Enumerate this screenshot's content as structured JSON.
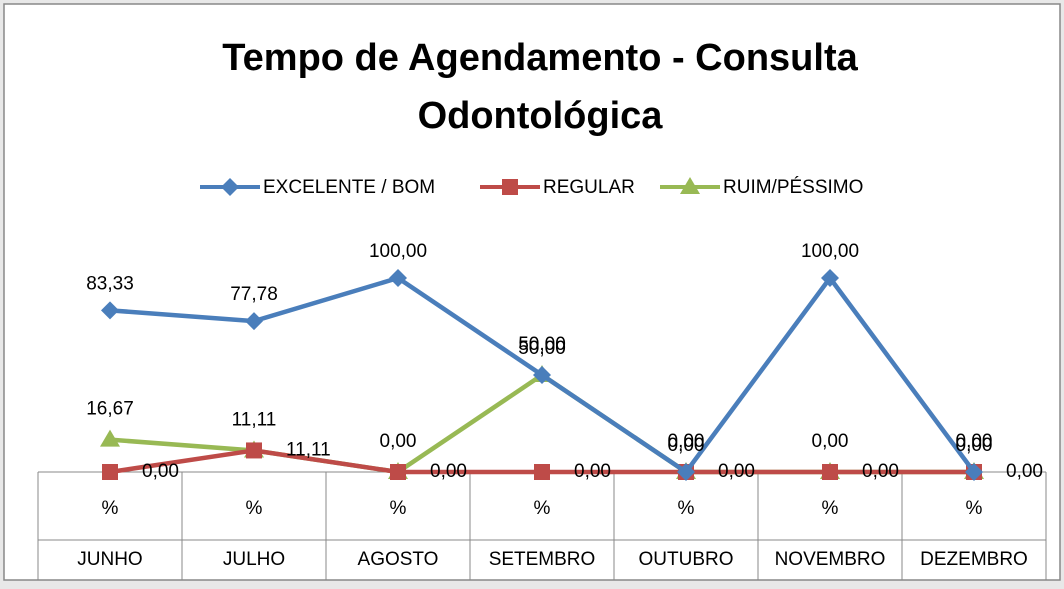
{
  "chart_data": {
    "type": "line",
    "title": [
      "Tempo de Agendamento - Consulta",
      "Odontológica"
    ],
    "categories": [
      "JUNHO",
      "JULHO",
      "AGOSTO",
      "SETEMBRO",
      "OUTUBRO",
      "NOVEMBRO",
      "DEZEMBRO"
    ],
    "unit": "%",
    "legend": "top",
    "series": [
      {
        "name": "EXCELENTE / BOM",
        "color": "#4a7ebb",
        "marker": "diamond",
        "values": [
          83.33,
          77.78,
          100,
          50,
          0,
          100,
          0
        ],
        "value_labels": [
          "83,33",
          "77,78",
          "100,00",
          "50,00",
          "0,00",
          "100,00",
          "0,00"
        ]
      },
      {
        "name": "REGULAR",
        "color": "#be4b48",
        "marker": "square",
        "values": [
          0,
          11.11,
          0,
          0,
          0,
          0,
          0
        ],
        "value_labels": [
          "0,00",
          "11,11",
          "0,00",
          "0,00",
          "0,00",
          "0,00",
          "0,00"
        ]
      },
      {
        "name": "RUIM/PÉSSIMO",
        "color": "#98b954",
        "marker": "triangle",
        "values": [
          16.67,
          11.11,
          0,
          50,
          0,
          0,
          0
        ],
        "value_labels": [
          "16,67",
          "11,11",
          "0,00",
          "50,00",
          "0,00",
          "0,00",
          "0,00"
        ]
      }
    ]
  }
}
